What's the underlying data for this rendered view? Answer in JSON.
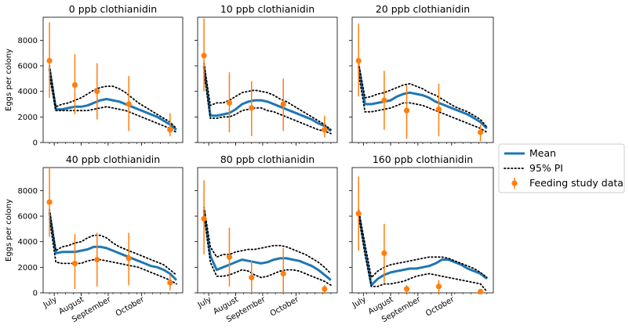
{
  "chart_data": [
    {
      "type": "line",
      "title": "0 ppb clothianidin",
      "ylabel": "Eggs per colony",
      "ylim": [
        0,
        9800
      ],
      "yticks": [
        0,
        2000,
        4000,
        6000,
        8000
      ],
      "xticklabels": [
        "July",
        "August",
        "September",
        "October"
      ],
      "series": [
        {
          "name": "Mean",
          "x": [
            0,
            2,
            4,
            6,
            8,
            10,
            12,
            14,
            16,
            18,
            20,
            22,
            24,
            26,
            28,
            30,
            32,
            34,
            36,
            38,
            40
          ],
          "y": [
            5800,
            2600,
            2600,
            2700,
            2800,
            2800,
            2900,
            3100,
            3300,
            3400,
            3300,
            3200,
            3000,
            2800,
            2600,
            2400,
            2200,
            2000,
            1700,
            1400,
            1000
          ]
        },
        {
          "name": "95% PI",
          "bound": "upper",
          "x": [
            0,
            2,
            4,
            6,
            8,
            10,
            12,
            14,
            16,
            18,
            20,
            22,
            24,
            26,
            28,
            30,
            32,
            34,
            36,
            38,
            40
          ],
          "y": [
            6000,
            2800,
            3000,
            3100,
            3300,
            3500,
            3800,
            4100,
            4300,
            4400,
            4400,
            4200,
            3900,
            3500,
            3100,
            2800,
            2500,
            2200,
            1900,
            1600,
            1100
          ]
        },
        {
          "name": "95% PI",
          "bound": "lower",
          "x": [
            0,
            2,
            4,
            6,
            8,
            10,
            12,
            14,
            16,
            18,
            20,
            22,
            24,
            26,
            28,
            30,
            32,
            34,
            36,
            38,
            40
          ],
          "y": [
            5200,
            2500,
            2500,
            2500,
            2500,
            2500,
            2500,
            2600,
            2700,
            2800,
            2700,
            2600,
            2500,
            2300,
            2100,
            1900,
            1700,
            1500,
            1300,
            1100,
            800
          ]
        }
      ],
      "feeding_study_data": {
        "x": [
          0,
          8,
          15,
          25,
          38
        ],
        "y": [
          6400,
          4500,
          4000,
          3000,
          1000
        ],
        "yerr_low": [
          3500,
          2200,
          1800,
          900,
          500
        ],
        "yerr_high": [
          9400,
          6900,
          6200,
          5200,
          2300
        ]
      }
    },
    {
      "type": "line",
      "title": "10 ppb clothianidin",
      "ylim": [
        0,
        9800
      ],
      "xticklabels": [
        "July",
        "August",
        "September",
        "October"
      ],
      "series": [
        {
          "name": "Mean",
          "x": [
            0,
            2,
            4,
            6,
            8,
            10,
            12,
            14,
            16,
            18,
            20,
            22,
            24,
            26,
            28,
            30,
            32,
            34,
            36,
            38,
            40
          ],
          "y": [
            6000,
            2100,
            2100,
            2200,
            2300,
            2600,
            3000,
            3200,
            3300,
            3300,
            3200,
            3000,
            2800,
            2600,
            2400,
            2200,
            2000,
            1800,
            1500,
            1300,
            900
          ]
        },
        {
          "name": "95% PI",
          "bound": "upper",
          "x": [
            0,
            2,
            4,
            6,
            8,
            10,
            12,
            14,
            16,
            18,
            20,
            22,
            24,
            26,
            28,
            30,
            32,
            34,
            36,
            38,
            40
          ],
          "y": [
            6200,
            2900,
            3100,
            3100,
            3300,
            3600,
            3900,
            4000,
            4100,
            4000,
            3900,
            3700,
            3400,
            3200,
            2900,
            2600,
            2300,
            2000,
            1700,
            1400,
            1000
          ]
        },
        {
          "name": "95% PI",
          "bound": "lower",
          "x": [
            0,
            2,
            4,
            6,
            8,
            10,
            12,
            14,
            16,
            18,
            20,
            22,
            24,
            26,
            28,
            30,
            32,
            34,
            36,
            38,
            40
          ],
          "y": [
            5500,
            1900,
            1900,
            2000,
            2000,
            2200,
            2500,
            2600,
            2700,
            2700,
            2500,
            2400,
            2200,
            2000,
            1800,
            1600,
            1400,
            1200,
            1000,
            900,
            700
          ]
        }
      ],
      "feeding_study_data": {
        "x": [
          0,
          8,
          15,
          25,
          38
        ],
        "y": [
          6800,
          3100,
          2700,
          3000,
          1000
        ],
        "yerr_low": [
          4000,
          800,
          500,
          900,
          400
        ],
        "yerr_high": [
          9700,
          5500,
          4800,
          5000,
          2100
        ]
      }
    },
    {
      "type": "line",
      "title": "20 ppb clothianidin",
      "ylim": [
        0,
        9800
      ],
      "xticklabels": [
        "July",
        "August",
        "September",
        "October"
      ],
      "series": [
        {
          "name": "Mean",
          "x": [
            0,
            2,
            4,
            6,
            8,
            10,
            12,
            14,
            16,
            18,
            20,
            22,
            24,
            26,
            28,
            30,
            32,
            34,
            36,
            38,
            40
          ],
          "y": [
            6000,
            3000,
            3000,
            3100,
            3200,
            3300,
            3600,
            3800,
            3900,
            3800,
            3700,
            3500,
            3200,
            3000,
            2800,
            2600,
            2400,
            2200,
            1900,
            1600,
            1100
          ]
        },
        {
          "name": "95% PI",
          "bound": "upper",
          "x": [
            0,
            2,
            4,
            6,
            8,
            10,
            12,
            14,
            16,
            18,
            20,
            22,
            24,
            26,
            28,
            30,
            32,
            34,
            36,
            38,
            40
          ],
          "y": [
            6200,
            3500,
            3600,
            3800,
            3900,
            4100,
            4300,
            4500,
            4600,
            4400,
            4200,
            3900,
            3700,
            3400,
            3100,
            2800,
            2600,
            2400,
            2100,
            1800,
            1200
          ]
        },
        {
          "name": "95% PI",
          "bound": "lower",
          "x": [
            0,
            2,
            4,
            6,
            8,
            10,
            12,
            14,
            16,
            18,
            20,
            22,
            24,
            26,
            28,
            30,
            32,
            34,
            36,
            38,
            40
          ],
          "y": [
            5400,
            2400,
            2400,
            2500,
            2600,
            2700,
            2900,
            3100,
            3100,
            3000,
            2900,
            2700,
            2500,
            2300,
            2100,
            1900,
            1700,
            1500,
            1300,
            1100,
            800
          ]
        }
      ],
      "feeding_study_data": {
        "x": [
          0,
          8,
          15,
          25,
          38
        ],
        "y": [
          6400,
          3300,
          2500,
          2600,
          800
        ],
        "yerr_low": [
          3600,
          1000,
          300,
          500,
          100
        ],
        "yerr_high": [
          9300,
          5600,
          4500,
          4600,
          1400
        ]
      }
    },
    {
      "type": "line",
      "title": "40 ppb clothianidin",
      "ylabel": "Eggs per colony",
      "ylim": [
        0,
        9800
      ],
      "yticks": [
        0,
        2000,
        4000,
        6000,
        8000
      ],
      "xticklabels": [
        "July",
        "August",
        "September",
        "October"
      ],
      "series": [
        {
          "name": "Mean",
          "x": [
            0,
            2,
            4,
            6,
            8,
            10,
            12,
            14,
            16,
            18,
            20,
            22,
            24,
            26,
            28,
            30,
            32,
            34,
            36,
            38,
            40
          ],
          "y": [
            6300,
            3100,
            3200,
            3200,
            3200,
            3300,
            3400,
            3600,
            3600,
            3500,
            3300,
            3100,
            2900,
            2700,
            2500,
            2300,
            2100,
            2000,
            1800,
            1500,
            1000
          ]
        },
        {
          "name": "95% PI",
          "bound": "upper",
          "x": [
            0,
            2,
            4,
            6,
            8,
            10,
            12,
            14,
            16,
            18,
            20,
            22,
            24,
            26,
            28,
            30,
            32,
            34,
            36,
            38,
            40
          ],
          "y": [
            6500,
            3300,
            3600,
            3700,
            3900,
            4000,
            4300,
            4500,
            4500,
            4300,
            3900,
            3600,
            3400,
            3200,
            3000,
            2800,
            2600,
            2400,
            2200,
            1800,
            1400
          ]
        },
        {
          "name": "95% PI",
          "bound": "lower",
          "x": [
            0,
            2,
            4,
            6,
            8,
            10,
            12,
            14,
            16,
            18,
            20,
            22,
            24,
            26,
            28,
            30,
            32,
            34,
            36,
            38,
            40
          ],
          "y": [
            5800,
            2400,
            2300,
            2300,
            2300,
            2300,
            2500,
            2600,
            2600,
            2500,
            2400,
            2300,
            2200,
            2100,
            2000,
            1800,
            1600,
            1400,
            1200,
            1000,
            700
          ]
        }
      ],
      "feeding_study_data": {
        "x": [
          0,
          8,
          15,
          25,
          38
        ],
        "y": [
          7100,
          2300,
          2600,
          2700,
          800
        ],
        "yerr_low": [
          4400,
          300,
          500,
          600,
          200
        ],
        "yerr_high": [
          9800,
          4600,
          4700,
          4700,
          1400
        ]
      }
    },
    {
      "type": "line",
      "title": "80 ppb clothianidin",
      "ylim": [
        0,
        9800
      ],
      "xticklabels": [
        "July",
        "August",
        "September",
        "October"
      ],
      "series": [
        {
          "name": "Mean",
          "x": [
            0,
            2,
            4,
            6,
            8,
            10,
            12,
            14,
            16,
            18,
            20,
            22,
            24,
            26,
            28,
            30,
            32,
            34,
            36,
            38,
            40
          ],
          "y": [
            6500,
            2900,
            1800,
            2000,
            2200,
            2400,
            2600,
            2500,
            2400,
            2300,
            2400,
            2600,
            2700,
            2700,
            2600,
            2500,
            2300,
            2100,
            1800,
            1400,
            1000
          ]
        },
        {
          "name": "95% PI",
          "bound": "upper",
          "x": [
            0,
            2,
            4,
            6,
            8,
            10,
            12,
            14,
            16,
            18,
            20,
            22,
            24,
            26,
            28,
            30,
            32,
            34,
            36,
            38,
            40
          ],
          "y": [
            6700,
            3600,
            2800,
            3000,
            3000,
            3200,
            3300,
            3400,
            3400,
            3500,
            3600,
            3700,
            3700,
            3600,
            3400,
            3200,
            3000,
            2700,
            2400,
            2000,
            1500
          ]
        },
        {
          "name": "95% PI",
          "bound": "lower",
          "x": [
            0,
            2,
            4,
            6,
            8,
            10,
            12,
            14,
            16,
            18,
            20,
            22,
            24,
            26,
            28,
            30,
            32,
            34,
            36,
            38,
            40
          ],
          "y": [
            6100,
            2400,
            1300,
            1300,
            1400,
            1600,
            1800,
            1700,
            1400,
            1200,
            1300,
            1500,
            1700,
            1800,
            1800,
            1700,
            1500,
            1300,
            1100,
            900,
            600
          ]
        }
      ],
      "feeding_study_data": {
        "x": [
          0,
          8,
          15,
          25,
          38
        ],
        "y": [
          5800,
          2800,
          1200,
          1500,
          300
        ],
        "yerr_low": [
          3000,
          500,
          0,
          0,
          0
        ],
        "yerr_high": [
          8800,
          5100,
          2500,
          3500,
          600
        ]
      }
    },
    {
      "type": "line",
      "title": "160 ppb clothianidin",
      "ylim": [
        0,
        9800
      ],
      "xticklabels": [
        "July",
        "August",
        "September",
        "October"
      ],
      "series": [
        {
          "name": "Mean",
          "x": [
            0,
            2,
            4,
            6,
            8,
            10,
            12,
            14,
            16,
            18,
            20,
            22,
            24,
            26,
            28,
            30,
            32,
            34,
            36,
            38,
            40
          ],
          "y": [
            6300,
            3400,
            600,
            1100,
            1400,
            1600,
            1700,
            1800,
            1900,
            1900,
            2000,
            2100,
            2300,
            2600,
            2600,
            2400,
            2200,
            1900,
            1700,
            1500,
            1100
          ]
        },
        {
          "name": "95% PI",
          "bound": "upper",
          "x": [
            0,
            2,
            4,
            6,
            8,
            10,
            12,
            14,
            16,
            18,
            20,
            22,
            24,
            26,
            28,
            30,
            32,
            34,
            36,
            38,
            40
          ],
          "y": [
            6500,
            3800,
            1200,
            1700,
            2000,
            2200,
            2300,
            2400,
            2500,
            2600,
            2700,
            2800,
            2800,
            2800,
            2700,
            2500,
            2300,
            2100,
            1900,
            1600,
            1200
          ]
        },
        {
          "name": "95% PI",
          "bound": "lower",
          "x": [
            0,
            2,
            4,
            6,
            8,
            10,
            12,
            14,
            16,
            18,
            20,
            22,
            24,
            26,
            28,
            30,
            32,
            34,
            36,
            38,
            40
          ],
          "y": [
            6000,
            3000,
            500,
            500,
            700,
            700,
            800,
            900,
            1100,
            1300,
            1400,
            1500,
            1400,
            1300,
            1200,
            1100,
            1000,
            900,
            800,
            700,
            100
          ]
        }
      ],
      "feeding_study_data": {
        "x": [
          0,
          8,
          15,
          25,
          38
        ],
        "y": [
          6200,
          3100,
          300,
          500,
          100
        ],
        "yerr_low": [
          3300,
          800,
          0,
          0,
          0
        ],
        "yerr_high": [
          9100,
          5400,
          600,
          1000,
          200
        ]
      }
    }
  ],
  "legend": {
    "position": "right",
    "entries": [
      {
        "label": "Mean",
        "color": "#1f77b4",
        "style": "solid"
      },
      {
        "label": "95% PI",
        "color": "#000000",
        "style": "dotted"
      },
      {
        "label": "Feeding study data",
        "color": "#ff7f0e",
        "style": "errorbar"
      }
    ]
  },
  "colors": {
    "mean": "#1f77b4",
    "pi": "#000000",
    "feeding": "#ff7f0e"
  }
}
